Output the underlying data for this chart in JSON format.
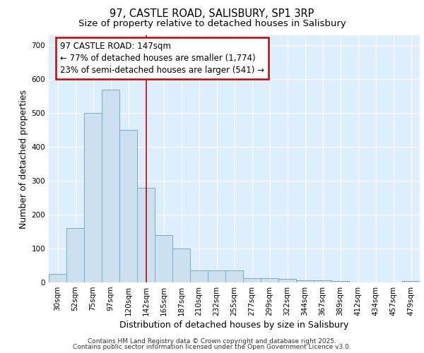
{
  "title_line1": "97, CASTLE ROAD, SALISBURY, SP1 3RP",
  "title_line2": "Size of property relative to detached houses in Salisbury",
  "xlabel": "Distribution of detached houses by size in Salisbury",
  "ylabel": "Number of detached properties",
  "categories": [
    "30sqm",
    "52sqm",
    "75sqm",
    "97sqm",
    "120sqm",
    "142sqm",
    "165sqm",
    "187sqm",
    "210sqm",
    "232sqm",
    "255sqm",
    "277sqm",
    "299sqm",
    "322sqm",
    "344sqm",
    "367sqm",
    "389sqm",
    "412sqm",
    "434sqm",
    "457sqm",
    "479sqm"
  ],
  "values": [
    25,
    160,
    500,
    570,
    450,
    280,
    140,
    100,
    35,
    35,
    35,
    13,
    13,
    10,
    7,
    7,
    5,
    0,
    0,
    0,
    5
  ],
  "bar_color": "#cce0f0",
  "bar_edge_color": "#7aabcc",
  "annotation_box_text": "97 CASTLE ROAD: 147sqm\n← 77% of detached houses are smaller (1,774)\n23% of semi-detached houses are larger (541) →",
  "annotation_box_edge_color": "#cc0000",
  "red_line_x": 5.0,
  "ylim": [
    0,
    730
  ],
  "yticks": [
    0,
    100,
    200,
    300,
    400,
    500,
    600,
    700
  ],
  "footer_line1": "Contains HM Land Registry data © Crown copyright and database right 2025.",
  "footer_line2": "Contains public sector information licensed under the Open Government Licence v3.0.",
  "background_color": "#ddeeff",
  "grid_color": "#ffffff",
  "title_fontsize": 10.5,
  "subtitle_fontsize": 9.5,
  "axis_label_fontsize": 9,
  "tick_fontsize": 7.5,
  "annotation_fontsize": 8.5,
  "footer_fontsize": 6.5
}
